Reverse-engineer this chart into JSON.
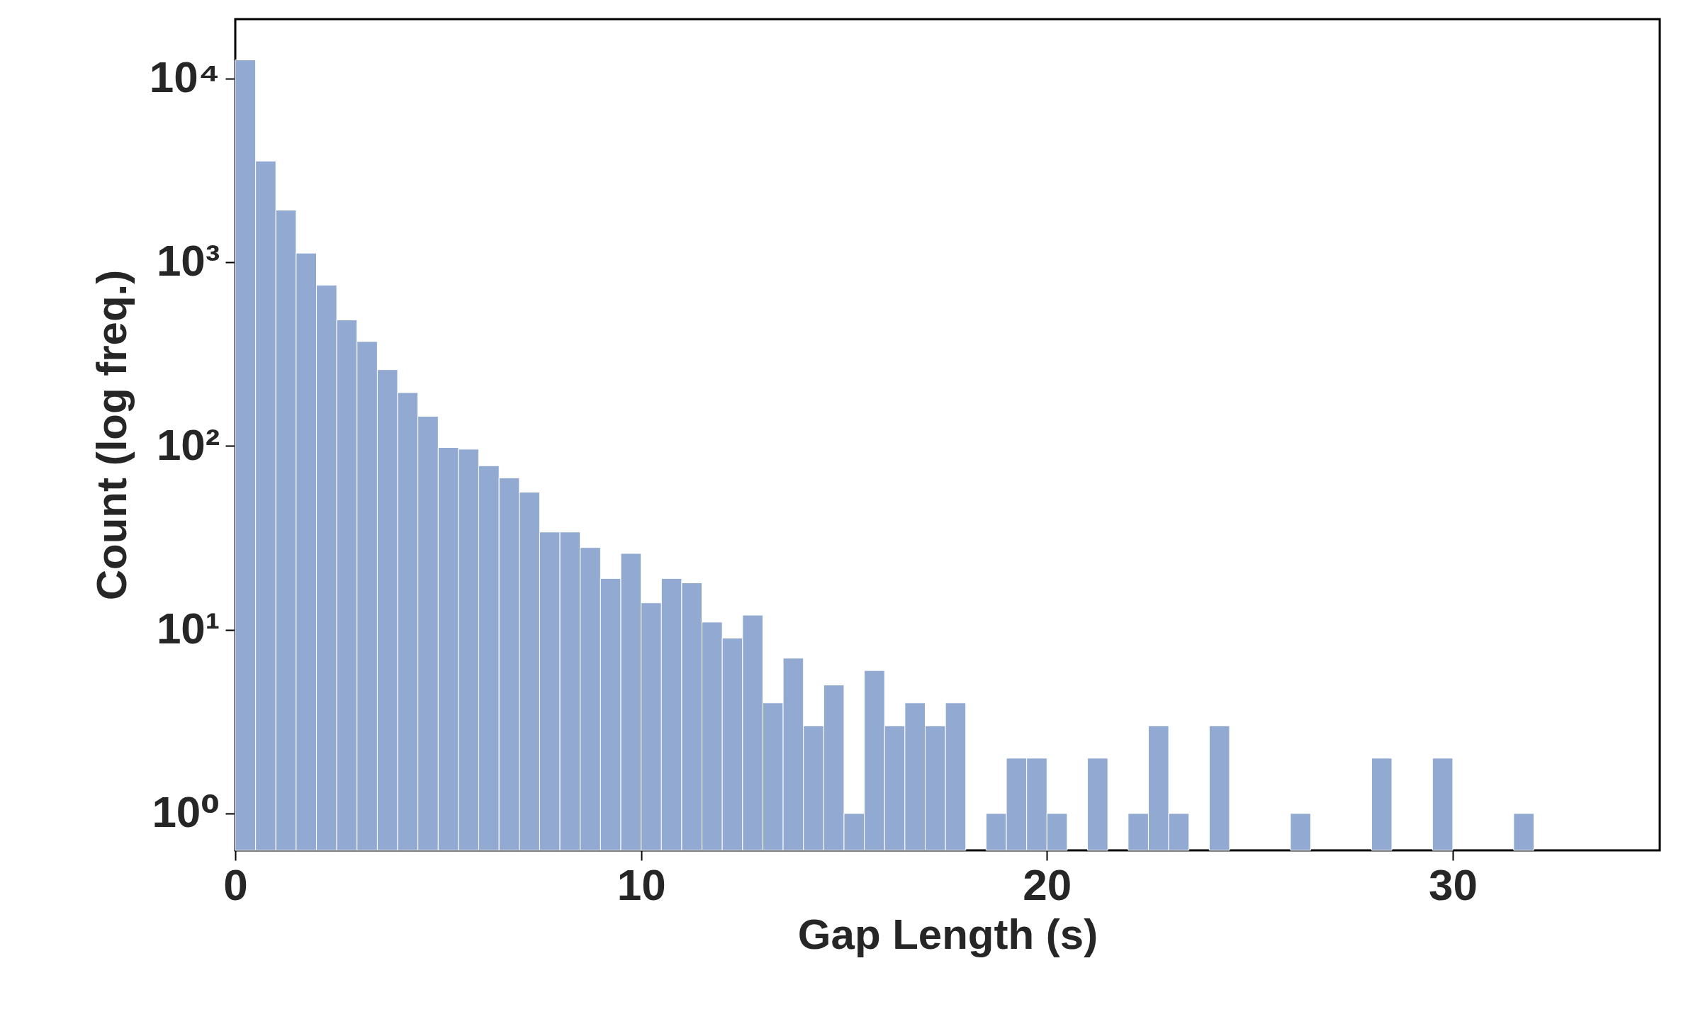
{
  "chart_data": {
    "type": "histogram",
    "xlabel": "Gap Length (s)",
    "ylabel": "Count (log freq.)",
    "log": true,
    "color": "#92a9d1",
    "bins": [
      0,
      0.5,
      1,
      1.5,
      2,
      2.5,
      3,
      3.5,
      4,
      4.5,
      5,
      5.5,
      6,
      6.5,
      7,
      7.5,
      8,
      8.5,
      9,
      9.5,
      10,
      10.5,
      11,
      11.5,
      12,
      12.5,
      13,
      13.5,
      14,
      14.5,
      15,
      15.5,
      16,
      16.5,
      17,
      17.5,
      18,
      18.5,
      19,
      19.5,
      20,
      20.5,
      21,
      21.5,
      22,
      22.5,
      23,
      23.5,
      24,
      24.5,
      25,
      25.5,
      26,
      26.5,
      27,
      27.5,
      28,
      28.5,
      29,
      29.5,
      30,
      30.5,
      31,
      31.5,
      32
    ],
    "values": [
      12600,
      3550,
      1920,
      1120,
      750,
      485,
      370,
      260,
      195,
      145,
      98,
      96,
      78,
      67,
      56,
      34,
      34,
      28,
      19,
      26,
      14,
      19,
      18,
      11,
      9,
      12,
      4,
      7,
      3,
      5,
      1,
      6,
      3,
      4,
      3,
      4,
      null,
      1,
      2,
      2,
      1,
      null,
      2,
      null,
      1,
      3,
      1,
      null,
      3,
      null,
      null,
      null,
      1,
      null,
      null,
      null,
      2,
      null,
      null,
      2,
      null,
      null,
      null,
      1
    ],
    "xlim": [
      0,
      35.1
    ],
    "xticks": [
      0,
      10,
      20,
      30
    ],
    "ylim": [
      0.63,
      21000
    ],
    "yticks": [
      {
        "value": 1,
        "label": "10⁰"
      },
      {
        "value": 10,
        "label": "10¹"
      },
      {
        "value": 100,
        "label": "10²"
      },
      {
        "value": 1000,
        "label": "10³"
      },
      {
        "value": 10000,
        "label": "10⁴"
      }
    ]
  }
}
